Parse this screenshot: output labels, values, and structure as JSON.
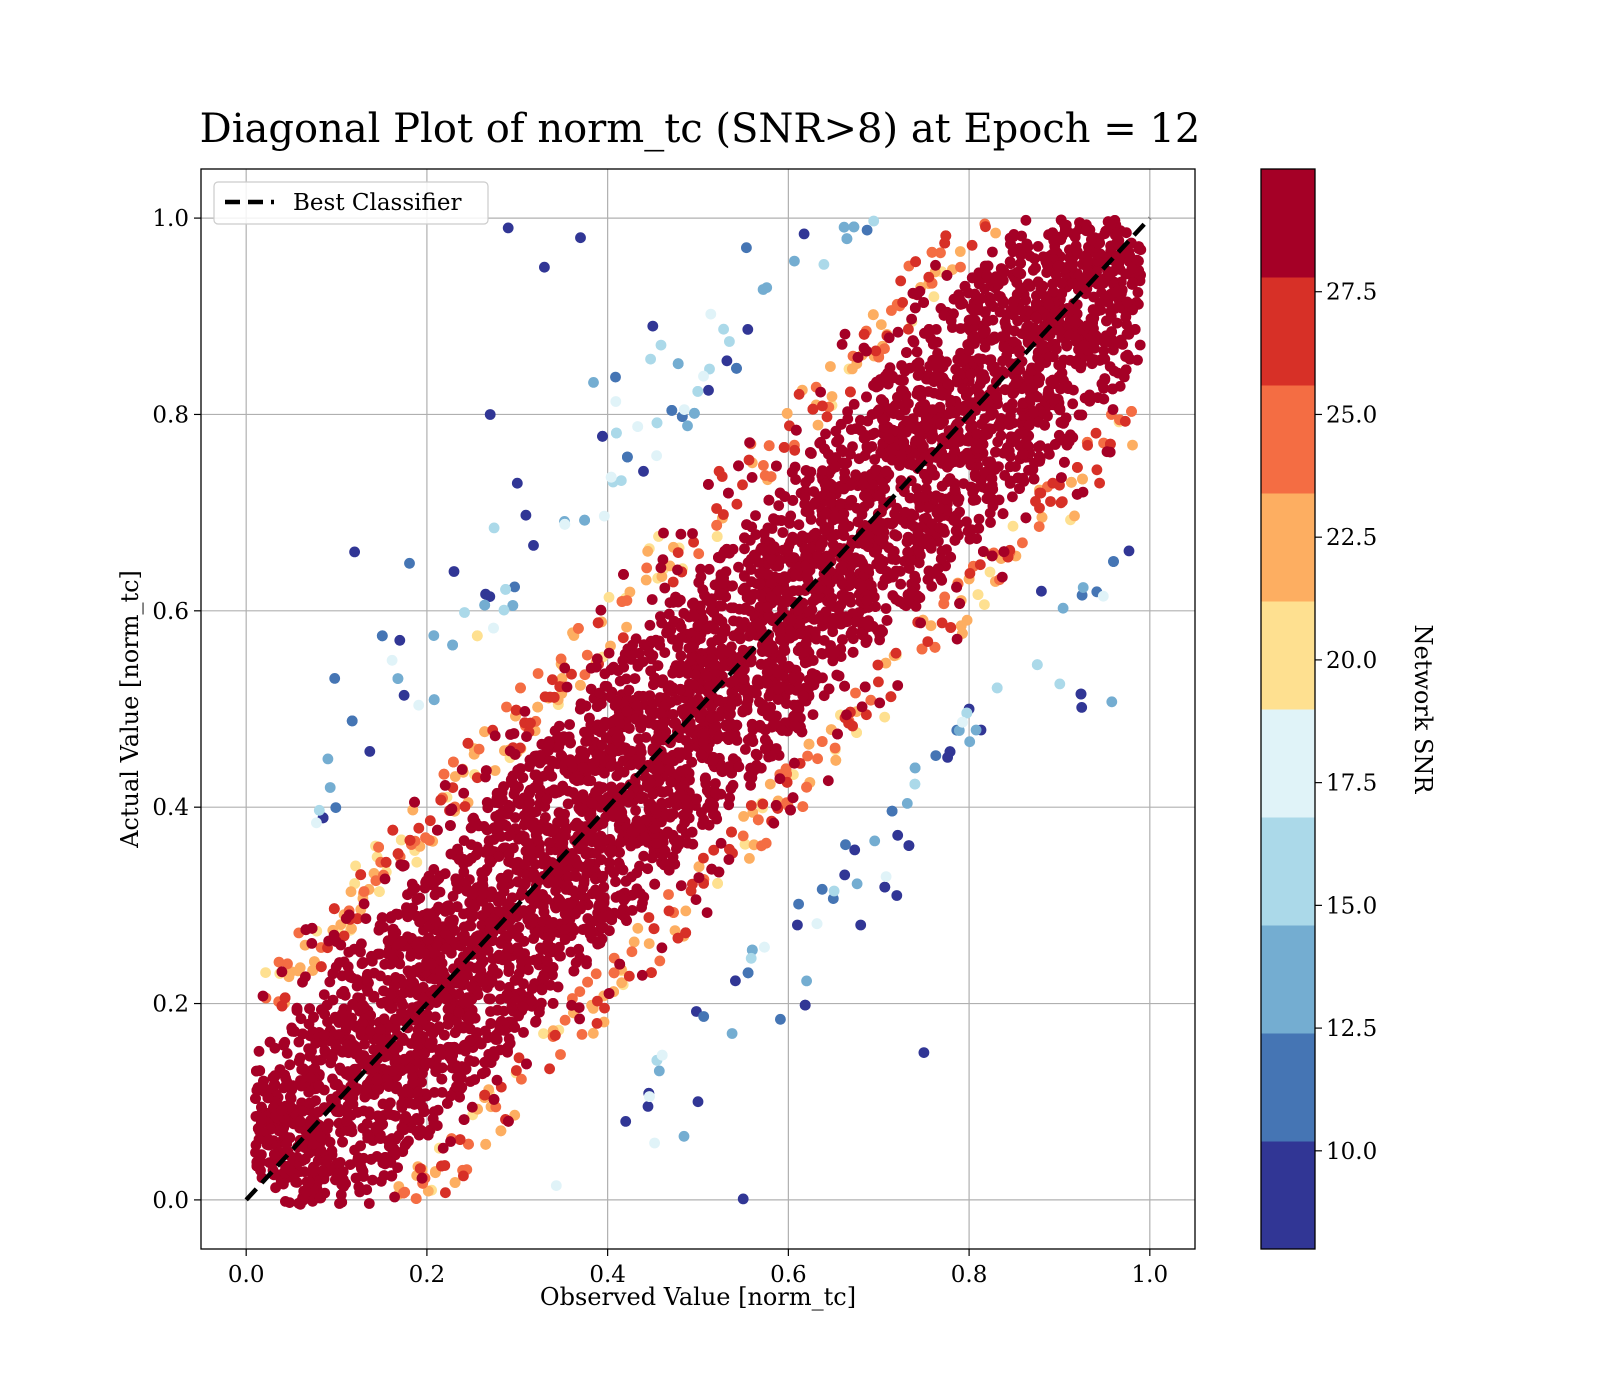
{
  "chart_data": {
    "type": "scatter",
    "title": "Diagonal Plot of norm_tc (SNR>8) at Epoch = 12",
    "xlabel": "Observed Value [norm_tc]",
    "ylabel": "Actual Value [norm_tc]",
    "xlim": [
      -0.05,
      1.05
    ],
    "ylim": [
      -0.05,
      1.05
    ],
    "xticks": [
      "0.0",
      "0.2",
      "0.4",
      "0.6",
      "0.8",
      "1.0"
    ],
    "yticks": [
      "0.0",
      "0.2",
      "0.4",
      "0.6",
      "0.8",
      "1.0"
    ],
    "grid": true,
    "legend": {
      "placement": "upper-left",
      "entries": [
        "Best Classifier"
      ]
    },
    "reference_line": {
      "name": "Best Classifier",
      "style": "dashed",
      "color": "#000000",
      "x": [
        0,
        1
      ],
      "y": [
        0,
        1
      ]
    },
    "colorbar": {
      "label": "Network SNR",
      "range": [
        8,
        30
      ],
      "ticks": [
        "10.0",
        "12.5",
        "15.0",
        "17.5",
        "20.0",
        "22.5",
        "25.0",
        "27.5"
      ],
      "colors": [
        "#313695",
        "#4575b4",
        "#74add1",
        "#abd9e9",
        "#e0f3f8",
        "#fee090",
        "#fdae61",
        "#f46d43",
        "#d73027",
        "#a50026"
      ]
    },
    "series": [
      {
        "x": [
          0.05,
          0.1,
          0.15,
          0.2,
          0.25,
          0.3,
          0.35,
          0.4,
          0.45,
          0.5,
          0.55,
          0.6,
          0.65,
          0.7,
          0.75,
          0.8,
          0.85,
          0.9,
          0.95
        ],
        "y": [
          0.03,
          0.09,
          0.16,
          0.21,
          0.26,
          0.29,
          0.36,
          0.41,
          0.44,
          0.51,
          0.56,
          0.59,
          0.66,
          0.69,
          0.76,
          0.81,
          0.84,
          0.91,
          0.96
        ],
        "snr": [
          29,
          29,
          29,
          29,
          29,
          29,
          29,
          29,
          29,
          29,
          29,
          29,
          29,
          29,
          29,
          29,
          29,
          29,
          29
        ]
      },
      {
        "x": [
          0.29,
          0.33,
          0.37,
          0.45,
          0.12,
          0.17,
          0.23,
          0.27,
          0.88,
          0.8,
          0.75,
          0.72,
          0.68,
          0.61,
          0.55,
          0.5,
          0.42,
          0.3
        ],
        "y": [
          0.99,
          0.95,
          0.98,
          0.89,
          0.66,
          0.57,
          0.64,
          0.8,
          0.62,
          0.5,
          0.15,
          0.31,
          0.28,
          0.28,
          0.001,
          0.1,
          0.08,
          0.73
        ],
        "snr": [
          9,
          9,
          9,
          9,
          9,
          9,
          9,
          9,
          9,
          9,
          9,
          9,
          9,
          9,
          9,
          9,
          9,
          9
        ]
      }
    ]
  }
}
